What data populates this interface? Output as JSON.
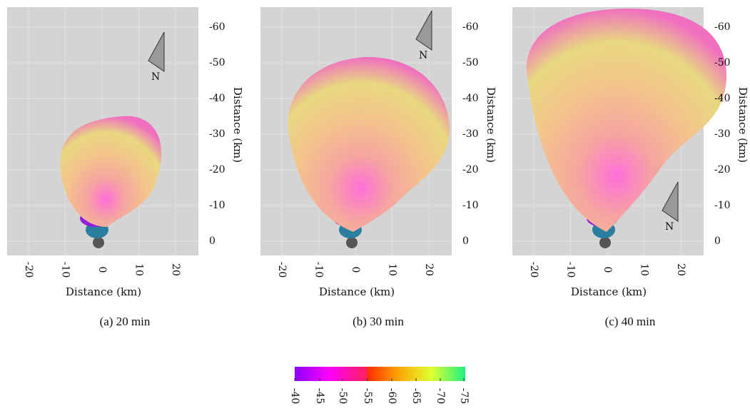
{
  "panels": [
    {
      "caption": "(a)  20 min",
      "x_axis_label": "Distance (km)",
      "y_axis_label": "Distance (km)",
      "compass_label": "N",
      "x_tick_labels": [
        "-20",
        "-10",
        "0",
        "10",
        "20"
      ],
      "y_tick_labels": [
        "-60",
        "-50",
        "-40",
        "-30",
        "-20",
        "-10",
        "0"
      ]
    },
    {
      "caption": "(b)  30 min",
      "x_axis_label": "Distance (km)",
      "y_axis_label": "Distance (km)",
      "compass_label": "N",
      "x_tick_labels": [
        "-20",
        "-10",
        "0",
        "10",
        "20"
      ],
      "y_tick_labels": [
        "-60",
        "-50",
        "-40",
        "-30",
        "-20",
        "-10",
        "0"
      ]
    },
    {
      "caption": "(c)  40 min",
      "x_axis_label": "Distance (km)",
      "y_axis_label": "Distance (km)",
      "compass_label": "N",
      "x_tick_labels": [
        "-20",
        "-10",
        "0",
        "10",
        "20"
      ],
      "y_tick_labels": [
        "-60",
        "-50",
        "-40",
        "-30",
        "-20",
        "-10",
        "0"
      ]
    }
  ],
  "colorbar": {
    "tick_labels": [
      "-40",
      "-45",
      "-50",
      "-55",
      "-60",
      "-65",
      "-70",
      "-75"
    ]
  }
}
